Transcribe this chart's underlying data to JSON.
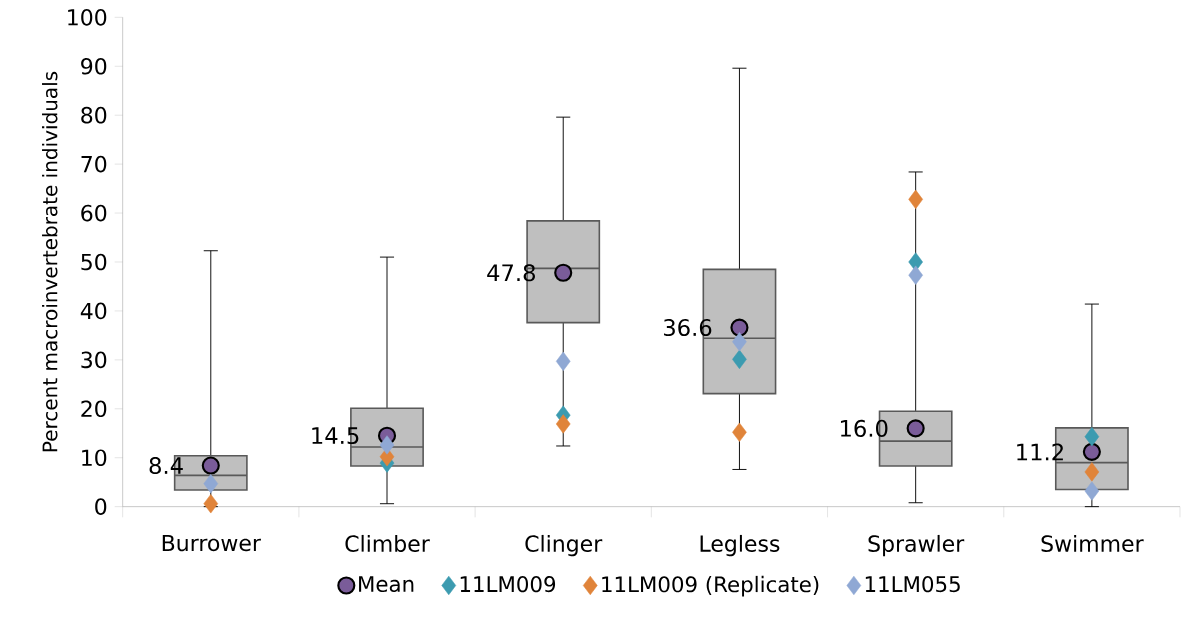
{
  "chart_data": {
    "type": "box",
    "ylabel": "Percent macroinvertebrate individuals",
    "categories": [
      "Burrower",
      "Climber",
      "Clinger",
      "Legless",
      "Sprawler",
      "Swimmer"
    ],
    "ylim": [
      0,
      100
    ],
    "yticks": [
      0,
      10,
      20,
      30,
      40,
      50,
      60,
      70,
      80,
      90,
      100
    ],
    "grid": false,
    "legend": "bottom",
    "series": [
      {
        "color": "#bfbfbf",
        "boxes": [
          {
            "low": 0,
            "q1": 3.4,
            "median": 6.4,
            "q3": 10.4,
            "high": 52.3
          },
          {
            "low": 0.6,
            "q1": 8.3,
            "median": 12.2,
            "q3": 20.1,
            "high": 51.0
          },
          {
            "low": 12.4,
            "q1": 37.6,
            "median": 48.7,
            "q3": 58.4,
            "high": 79.6
          },
          {
            "low": 7.6,
            "q1": 23.1,
            "median": 34.4,
            "q3": 48.5,
            "high": 89.6
          },
          {
            "low": 0.8,
            "q1": 8.3,
            "median": 13.4,
            "q3": 19.5,
            "high": 68.4
          },
          {
            "low": 0,
            "q1": 3.5,
            "median": 9.0,
            "q3": 16.1,
            "high": 41.4
          }
        ]
      },
      {
        "type": "scatter",
        "name": "Mean",
        "color": "#7a5c99",
        "marker": "circle",
        "values": [
          8.4,
          14.5,
          47.8,
          36.6,
          16.0,
          11.2
        ],
        "value_labels": [
          "8.4",
          "14.5",
          "47.8",
          "36.6",
          "16.0",
          "11.2"
        ]
      },
      {
        "type": "scatter",
        "name": "11LM009",
        "color": "#3c9bb0",
        "marker": "diamond",
        "values": [
          null,
          8.9,
          18.7,
          30.1,
          50.0,
          14.3
        ]
      },
      {
        "type": "scatter",
        "name": "11LM009 (Replicate)",
        "color": "#e0843a",
        "marker": "diamond",
        "values": [
          0.6,
          10.2,
          16.9,
          15.2,
          62.8,
          7.1
        ]
      },
      {
        "type": "scatter",
        "name": "11LM055",
        "color": "#8fa8d4",
        "marker": "diamond",
        "values": [
          4.7,
          12.6,
          29.7,
          33.7,
          47.3,
          3.2
        ]
      }
    ]
  }
}
